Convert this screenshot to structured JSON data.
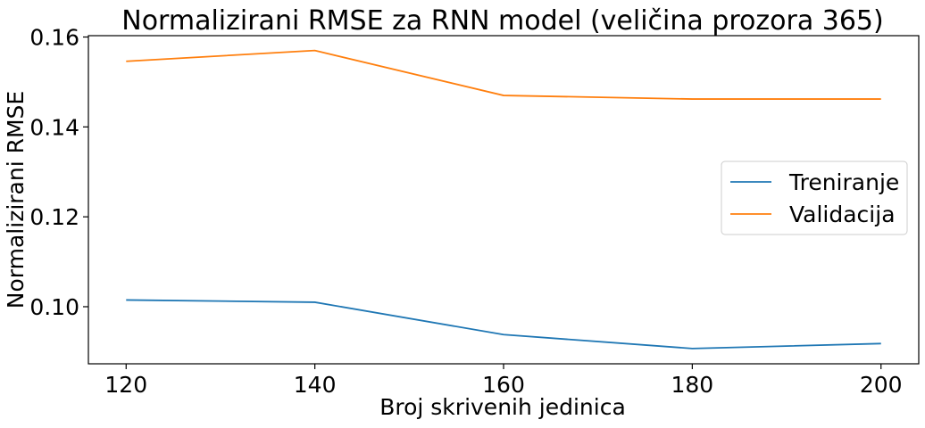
{
  "chart_data": {
    "type": "line",
    "title": "Normalizirani RMSE za RNN model (veličina prozora 365)",
    "xlabel": "Broj skrivenih jedinica",
    "ylabel": "Normalizirani RMSE",
    "x": [
      120,
      140,
      160,
      180,
      200
    ],
    "xlim": [
      116,
      204
    ],
    "ylim": [
      0.0873,
      0.1603
    ],
    "xticks": [
      120,
      140,
      160,
      180,
      200
    ],
    "yticks": [
      0.1,
      0.12,
      0.14,
      0.16
    ],
    "ytick_labels": [
      "0.10",
      "0.12",
      "0.14",
      "0.16"
    ],
    "xtick_labels": [
      "120",
      "140",
      "160",
      "180",
      "200"
    ],
    "grid": false,
    "legend_position": "center-right",
    "series": [
      {
        "name": "Treniranje",
        "color": "#1f77b4",
        "values": [
          0.1015,
          0.101,
          0.0938,
          0.0907,
          0.0918
        ]
      },
      {
        "name": "Validacija",
        "color": "#ff7f0e",
        "values": [
          0.1546,
          0.157,
          0.147,
          0.1462,
          0.1462
        ]
      }
    ]
  }
}
